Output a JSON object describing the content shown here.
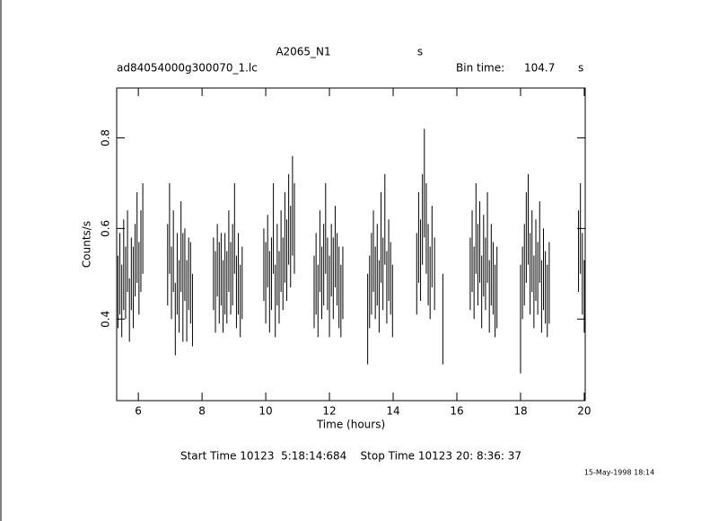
{
  "chart_data": {
    "type": "errorbar",
    "title": "A2065_N1",
    "title_unit": "s",
    "subtitle": "ad84054000g300070_1.lc",
    "bin_time_label": "Bin time:",
    "bin_time": "104.7",
    "bin_time_unit": "s",
    "xlabel": "Time (hours)",
    "ylabel": "Counts/s",
    "footer": "Start Time 10123  5:18:14:684    Stop Time 10123 20: 8:36: 37",
    "date": "15-May-1998 18:14",
    "xlim": [
      5.32,
      20.03
    ],
    "ylim": [
      0.22,
      0.91
    ],
    "xticks": [
      6,
      8,
      10,
      12,
      14,
      16,
      18,
      20
    ],
    "yticks": [
      0.4,
      0.6,
      0.8
    ],
    "x": [
      5.36,
      5.42,
      5.48,
      5.54,
      5.6,
      5.66,
      5.72,
      5.78,
      5.84,
      5.9,
      5.96,
      6.02,
      6.08,
      6.14,
      6.92,
      6.98,
      7.04,
      7.1,
      7.16,
      7.22,
      7.28,
      7.34,
      7.4,
      7.46,
      7.52,
      7.58,
      7.64,
      7.7,
      8.36,
      8.42,
      8.48,
      8.54,
      8.6,
      8.66,
      8.72,
      8.78,
      8.84,
      8.9,
      8.96,
      9.02,
      9.08,
      9.14,
      9.2,
      9.26,
      9.94,
      10.0,
      10.06,
      10.12,
      10.18,
      10.24,
      10.3,
      10.36,
      10.42,
      10.48,
      10.54,
      10.6,
      10.66,
      10.72,
      10.78,
      10.84,
      10.9,
      11.52,
      11.58,
      11.64,
      11.7,
      11.76,
      11.82,
      11.88,
      11.94,
      12.0,
      12.06,
      12.12,
      12.18,
      12.24,
      12.3,
      12.36,
      12.42,
      13.2,
      13.26,
      13.32,
      13.38,
      13.44,
      13.5,
      13.56,
      13.62,
      13.68,
      13.74,
      13.8,
      13.86,
      13.92,
      13.98,
      14.74,
      14.8,
      14.86,
      14.92,
      14.98,
      15.04,
      15.1,
      15.16,
      15.22,
      15.3,
      15.56,
      16.42,
      16.48,
      16.54,
      16.6,
      16.66,
      16.72,
      16.78,
      16.84,
      16.9,
      16.96,
      17.02,
      17.08,
      17.14,
      17.2,
      17.26,
      18.0,
      18.06,
      18.12,
      18.18,
      18.24,
      18.3,
      18.36,
      18.42,
      18.48,
      18.54,
      18.6,
      18.66,
      18.72,
      18.78,
      18.84,
      18.9,
      19.82,
      19.88,
      19.94,
      20.0
    ],
    "series": [
      {
        "color": "#000000",
        "values": [
          0.46,
          0.5,
          0.44,
          0.52,
          0.48,
          0.55,
          0.42,
          0.5,
          0.47,
          0.53,
          0.58,
          0.49,
          0.55,
          0.6,
          0.52,
          0.6,
          0.48,
          0.55,
          0.4,
          0.5,
          0.45,
          0.56,
          0.47,
          0.52,
          0.44,
          0.5,
          0.48,
          0.42,
          0.5,
          0.46,
          0.53,
          0.48,
          0.51,
          0.45,
          0.5,
          0.47,
          0.55,
          0.49,
          0.52,
          0.6,
          0.46,
          0.5,
          0.44,
          0.48,
          0.52,
          0.48,
          0.55,
          0.46,
          0.5,
          0.6,
          0.44,
          0.52,
          0.47,
          0.55,
          0.5,
          0.58,
          0.53,
          0.62,
          0.56,
          0.65,
          0.6,
          0.46,
          0.5,
          0.44,
          0.55,
          0.48,
          0.52,
          0.6,
          0.5,
          0.45,
          0.53,
          0.49,
          0.56,
          0.51,
          0.47,
          0.44,
          0.48,
          0.4,
          0.46,
          0.5,
          0.55,
          0.48,
          0.52,
          0.45,
          0.58,
          0.5,
          0.62,
          0.47,
          0.53,
          0.49,
          0.44,
          0.5,
          0.58,
          0.53,
          0.62,
          0.7,
          0.6,
          0.52,
          0.48,
          0.56,
          0.5,
          0.4,
          0.5,
          0.55,
          0.48,
          0.6,
          0.52,
          0.57,
          0.46,
          0.54,
          0.5,
          0.58,
          0.45,
          0.52,
          0.49,
          0.44,
          0.47,
          0.4,
          0.48,
          0.52,
          0.58,
          0.62,
          0.5,
          0.55,
          0.46,
          0.53,
          0.49,
          0.57,
          0.45,
          0.51,
          0.47,
          0.44,
          0.48,
          0.55,
          0.6,
          0.5,
          0.45
        ],
        "errors": [
          0.08,
          0.09,
          0.08,
          0.1,
          0.08,
          0.09,
          0.07,
          0.08,
          0.09,
          0.08,
          0.1,
          0.08,
          0.09,
          0.1,
          0.09,
          0.1,
          0.08,
          0.09,
          0.08,
          0.09,
          0.08,
          0.1,
          0.12,
          0.08,
          0.09,
          0.08,
          0.09,
          0.08,
          0.08,
          0.09,
          0.08,
          0.09,
          0.08,
          0.08,
          0.09,
          0.08,
          0.09,
          0.08,
          0.09,
          0.1,
          0.08,
          0.09,
          0.08,
          0.08,
          0.08,
          0.09,
          0.08,
          0.09,
          0.08,
          0.1,
          0.08,
          0.09,
          0.08,
          0.09,
          0.08,
          0.1,
          0.09,
          0.1,
          0.09,
          0.11,
          0.1,
          0.08,
          0.09,
          0.08,
          0.09,
          0.08,
          0.09,
          0.1,
          0.08,
          0.09,
          0.08,
          0.09,
          0.09,
          0.08,
          0.09,
          0.08,
          0.08,
          0.1,
          0.08,
          0.09,
          0.09,
          0.08,
          0.09,
          0.08,
          0.1,
          0.08,
          0.1,
          0.08,
          0.09,
          0.08,
          0.08,
          0.09,
          0.1,
          0.09,
          0.1,
          0.12,
          0.1,
          0.09,
          0.08,
          0.09,
          0.08,
          0.1,
          0.08,
          0.09,
          0.08,
          0.1,
          0.09,
          0.09,
          0.08,
          0.09,
          0.08,
          0.1,
          0.08,
          0.09,
          0.08,
          0.08,
          0.09,
          0.12,
          0.08,
          0.09,
          0.1,
          0.1,
          0.09,
          0.09,
          0.08,
          0.09,
          0.08,
          0.09,
          0.08,
          0.09,
          0.08,
          0.08,
          0.09,
          0.09,
          0.1,
          0.09,
          0.08
        ]
      }
    ]
  }
}
